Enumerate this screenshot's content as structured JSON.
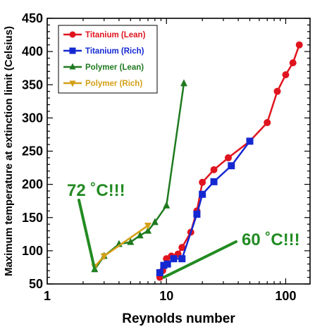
{
  "chart_data": {
    "type": "line",
    "title": "",
    "xlabel": "Reynolds number",
    "ylabel": "Maximum temperature at extinction limit (Celsius)",
    "xscale": "log",
    "xlim": [
      1,
      160
    ],
    "ylim": [
      50,
      450
    ],
    "xticks": [
      1,
      10,
      100
    ],
    "xtick_labels": [
      "1",
      "10",
      "100"
    ],
    "yticks": [
      50,
      100,
      150,
      200,
      250,
      300,
      350,
      400,
      450
    ],
    "ytick_labels": [
      "50",
      "100",
      "150",
      "200",
      "250",
      "300",
      "350",
      "400",
      "450"
    ],
    "grid": false,
    "legend_position": "top-left",
    "series": [
      {
        "name": "Titanium (Lean)",
        "color": "#e0141e",
        "marker": "circle",
        "points": [
          [
            8.8,
            60
          ],
          [
            9.3,
            70
          ],
          [
            10,
            88
          ],
          [
            11,
            92
          ],
          [
            12.5,
            95
          ],
          [
            13.5,
            105
          ],
          [
            16,
            128
          ],
          [
            18,
            160
          ],
          [
            20,
            203
          ],
          [
            25,
            222
          ],
          [
            33,
            240
          ],
          [
            50,
            265
          ],
          [
            70,
            293
          ],
          [
            85,
            340
          ],
          [
            100,
            365
          ],
          [
            115,
            383
          ],
          [
            130,
            410
          ]
        ]
      },
      {
        "name": "Titanium (Rich)",
        "color": "#1428d2",
        "marker": "square",
        "points": [
          [
            8.8,
            67
          ],
          [
            9.5,
            78
          ],
          [
            10.2,
            80
          ],
          [
            11.5,
            88
          ],
          [
            13.5,
            88
          ],
          [
            18,
            155
          ],
          [
            20,
            185
          ],
          [
            25,
            204
          ],
          [
            35,
            228
          ],
          [
            50,
            265
          ]
        ]
      },
      {
        "name": "Polymer (Lean)",
        "color": "#1f7a1f",
        "marker": "triangle-up",
        "points": [
          [
            2.5,
            72
          ],
          [
            3,
            92
          ],
          [
            4,
            110
          ],
          [
            5,
            113
          ],
          [
            6,
            123
          ],
          [
            7,
            130
          ],
          [
            8,
            143
          ],
          [
            10,
            168
          ],
          [
            14,
            352
          ]
        ]
      },
      {
        "name": "Polymer (Rich)",
        "color": "#d4a017",
        "marker": "triangle-down",
        "points": [
          [
            2.5,
            76
          ],
          [
            3,
            92
          ],
          [
            7,
            138
          ]
        ]
      }
    ],
    "annotations": [
      {
        "text": "72 ˚C!!!",
        "color": "#228b22",
        "arrow_to": [
          2.5,
          72
        ]
      },
      {
        "text": "60 ˚C!!!",
        "color": "#228b22",
        "arrow_to": [
          9.5,
          60
        ]
      }
    ]
  }
}
